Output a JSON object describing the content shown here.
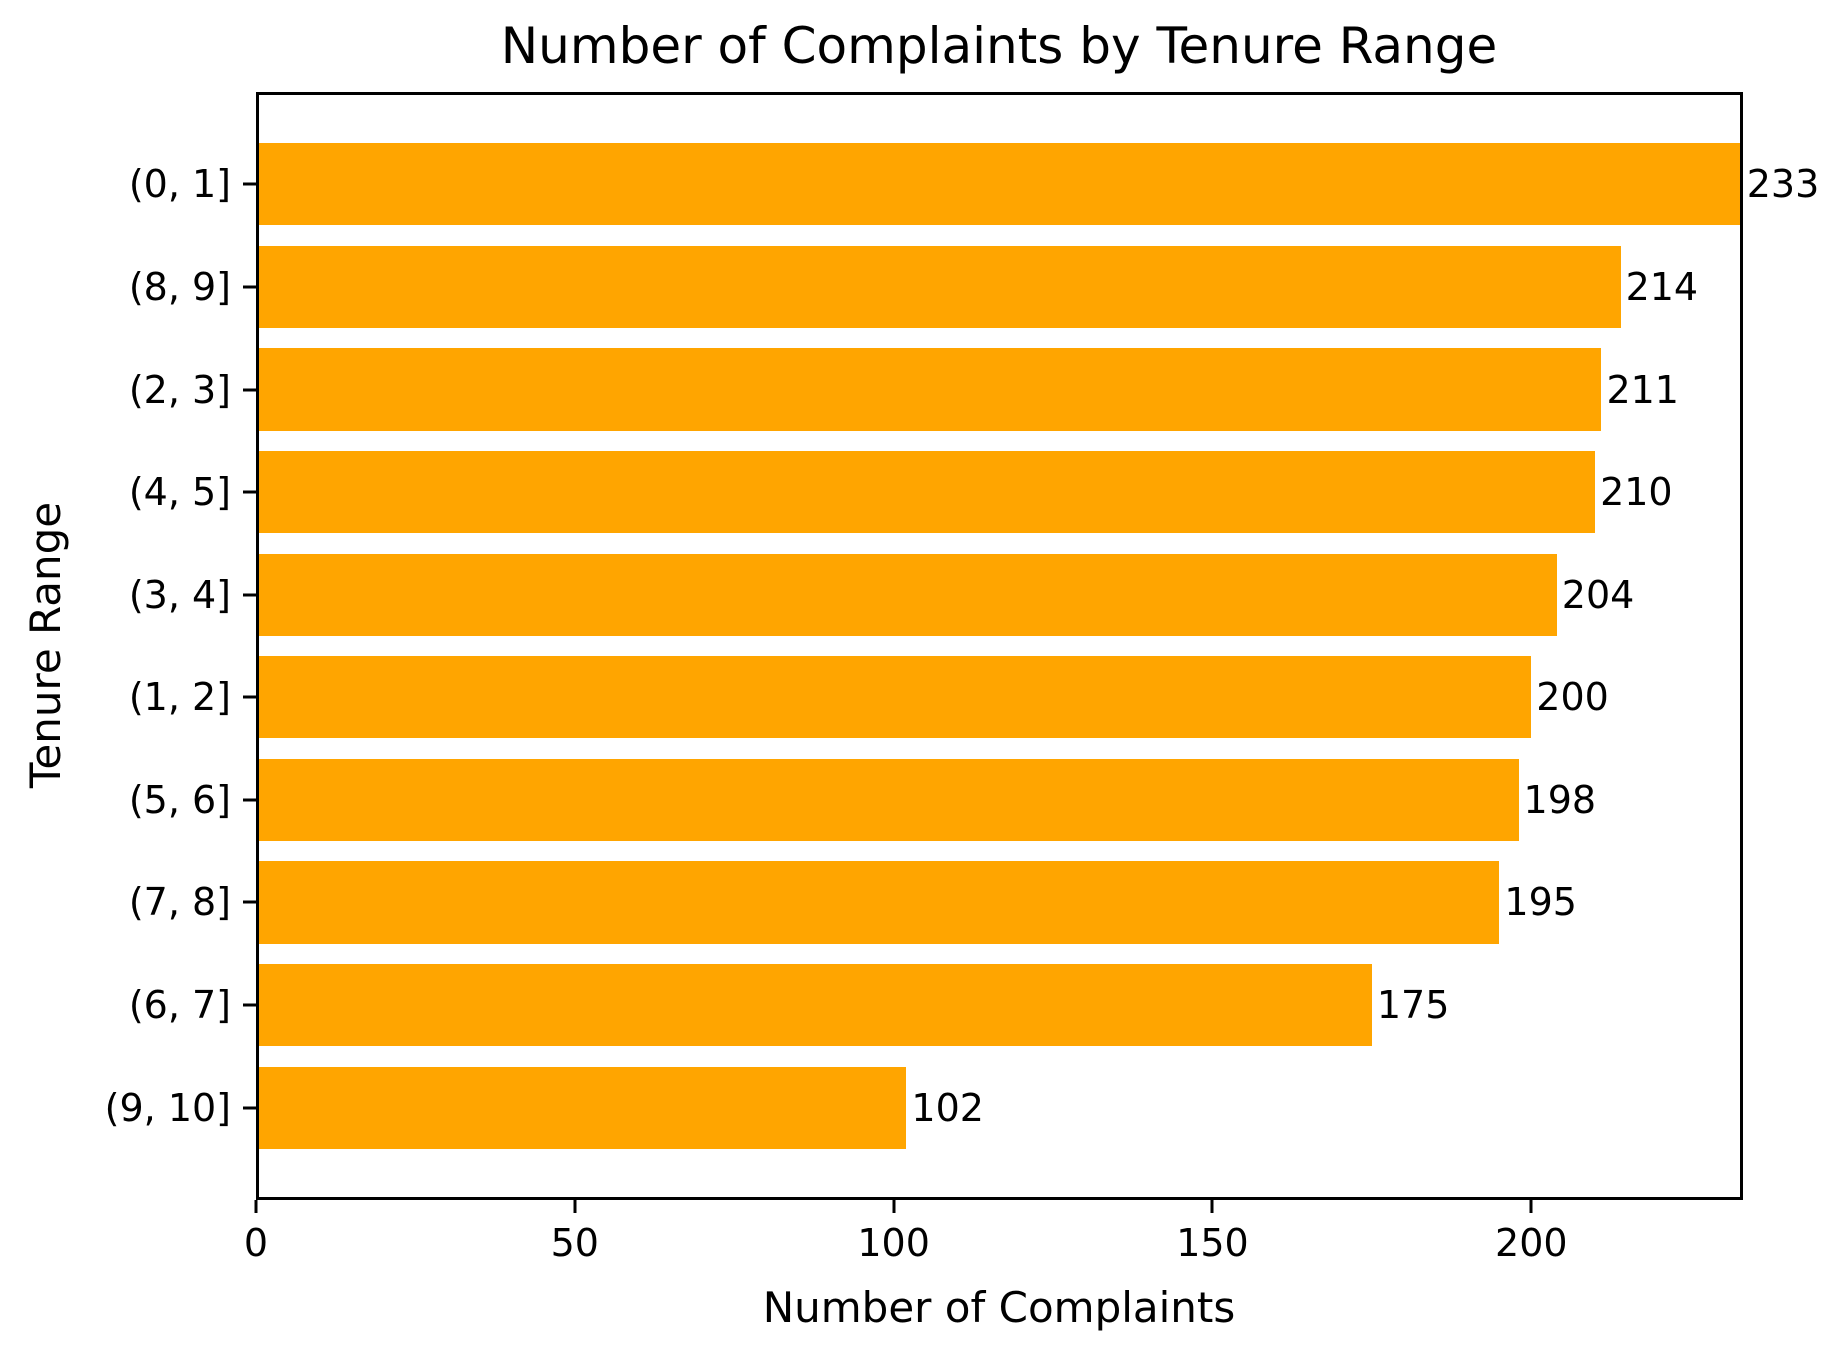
{
  "chart_data": {
    "type": "bar",
    "orientation": "horizontal",
    "title": "Number of Complaints by Tenure Range",
    "xlabel": "Number of Complaints",
    "ylabel": "Tenure Range",
    "categories": [
      "(0, 1]",
      "(8, 9]",
      "(2, 3]",
      "(4, 5]",
      "(3, 4]",
      "(1, 2]",
      "(5, 6]",
      "(7, 8]",
      "(6, 7]",
      "(9, 10]"
    ],
    "values": [
      233,
      214,
      211,
      210,
      204,
      200,
      198,
      195,
      175,
      102
    ],
    "xticks": [
      0,
      50,
      100,
      150,
      200
    ],
    "xlim": [
      0,
      233.2
    ],
    "bar_color": "#FFA500",
    "background_color": "#FFFFFF",
    "text_color": "#000000",
    "grid": false,
    "legend": false,
    "bar_value_labels_shown": true
  }
}
